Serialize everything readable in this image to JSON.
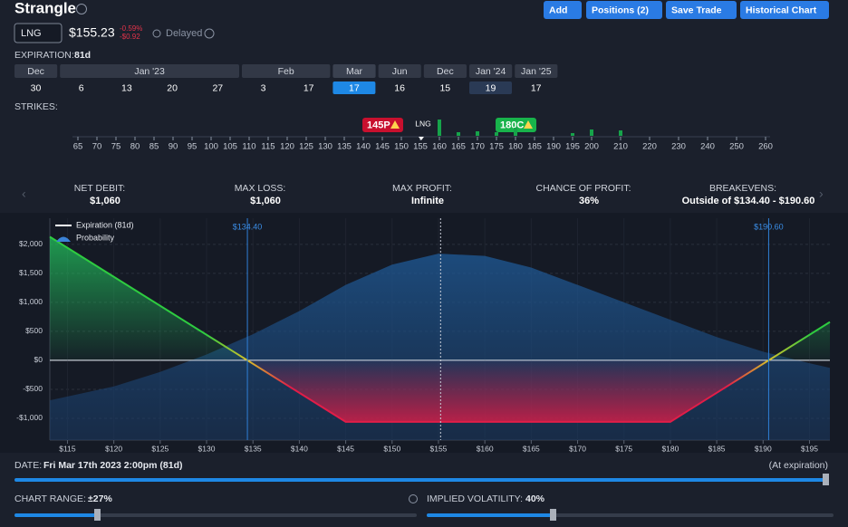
{
  "header": {
    "title": "Strangle",
    "buttons": [
      "Add",
      "Positions (2)",
      "Save Trade",
      "Historical Chart"
    ]
  },
  "ticker": {
    "symbol": "LNG",
    "price": "$155.23",
    "change_pct": "-0.59%",
    "change_abs": "-$0.92",
    "status": "Delayed"
  },
  "expiration": {
    "label": "EXPIRATION:",
    "value": "81d",
    "months": [
      {
        "label": "Dec",
        "dates": [
          "30"
        ]
      },
      {
        "label": "Jan '23",
        "dates": [
          "6",
          "13",
          "20",
          "27"
        ]
      },
      {
        "label": "Feb",
        "dates": [
          "3",
          "17"
        ]
      },
      {
        "label": "Mar",
        "dates": [
          "17"
        ]
      },
      {
        "label": "Jun",
        "dates": [
          "16"
        ]
      },
      {
        "label": "Dec",
        "dates": [
          "15"
        ]
      },
      {
        "label": "Jan '24",
        "dates": [
          "19"
        ]
      },
      {
        "label": "Jan '25",
        "dates": [
          "17"
        ]
      }
    ]
  },
  "strikes": {
    "label": "STRIKES:",
    "underlying": "LNG",
    "legs": [
      "145P",
      "180C"
    ],
    "values": [
      65,
      70,
      75,
      80,
      85,
      90,
      95,
      100,
      105,
      110,
      115,
      120,
      125,
      130,
      135,
      140,
      145,
      150,
      155,
      160,
      165,
      170,
      175,
      180,
      185,
      190,
      195,
      200,
      210,
      220,
      230,
      240,
      250,
      260
    ]
  },
  "stats": [
    {
      "label": "NET DEBIT:",
      "value": "$1,060"
    },
    {
      "label": "MAX LOSS:",
      "value": "$1,060"
    },
    {
      "label": "MAX PROFIT:",
      "value": "Infinite"
    },
    {
      "label": "CHANCE OF PROFIT:",
      "value": "36%"
    },
    {
      "label": "BREAKEVENS:",
      "value": "Outside of $134.40 - $190.60"
    }
  ],
  "payoff_chart": {
    "type": "line",
    "grid": true,
    "xlim": [
      113.1,
      197.2
    ],
    "ylim": [
      -1375,
      2450
    ],
    "xticks": [
      {
        "value": 115,
        "label": "$115"
      },
      {
        "value": 120,
        "label": "$120"
      },
      {
        "value": 125,
        "label": "$125"
      },
      {
        "value": 130,
        "label": "$130"
      },
      {
        "value": 135,
        "label": "$135"
      },
      {
        "value": 140,
        "label": "$140"
      },
      {
        "value": 145,
        "label": "$145"
      },
      {
        "value": 150,
        "label": "$150"
      },
      {
        "value": 155,
        "label": "$155"
      },
      {
        "value": 160,
        "label": "$160"
      },
      {
        "value": 165,
        "label": "$165"
      },
      {
        "value": 170,
        "label": "$170"
      },
      {
        "value": 175,
        "label": "$175"
      },
      {
        "value": 180,
        "label": "$180"
      },
      {
        "value": 185,
        "label": "$185"
      },
      {
        "value": 190,
        "label": "$190"
      },
      {
        "value": 195,
        "label": "$195"
      }
    ],
    "yticks": [
      {
        "value": 2000,
        "label": "$2,000"
      },
      {
        "value": 1500,
        "label": "$1,500"
      },
      {
        "value": 1000,
        "label": "$1,000"
      },
      {
        "value": 500,
        "label": "$500"
      },
      {
        "value": 0,
        "label": "$0"
      },
      {
        "value": -500,
        "label": "-$500"
      },
      {
        "value": -1000,
        "label": "-$1,000"
      }
    ],
    "series": [
      {
        "name": "Expiration (81d)",
        "color": "#ffffff",
        "x": [
          113.1,
          145,
          180,
          197.2
        ],
        "values": [
          2130,
          -1060,
          -1060,
          660
        ]
      },
      {
        "name": "Probability",
        "color": "#1e4f86",
        "x": [
          113.1,
          120,
          125,
          130,
          135,
          140,
          145,
          150,
          155,
          160,
          165,
          170,
          175,
          180,
          185,
          190,
          195,
          197.2
        ],
        "values": [
          -690,
          -450,
          -200,
          100,
          450,
          850,
          1300,
          1650,
          1840,
          1800,
          1600,
          1300,
          1000,
          700,
          400,
          150,
          -50,
          -130
        ]
      }
    ],
    "breakevens": [
      {
        "value": 134.4,
        "label": "$134.40"
      },
      {
        "value": 190.6,
        "label": "$190.60"
      }
    ],
    "current_price": 155.23
  },
  "date": {
    "label": "DATE:",
    "value": "Fri Mar 17th 2023 2:00pm (81d)",
    "note": "(At expiration)"
  },
  "chart_range": {
    "label": "CHART RANGE:",
    "value": "±27%"
  },
  "implied_volatility": {
    "label": "IMPLIED VOLATILITY:",
    "value": "40%"
  }
}
